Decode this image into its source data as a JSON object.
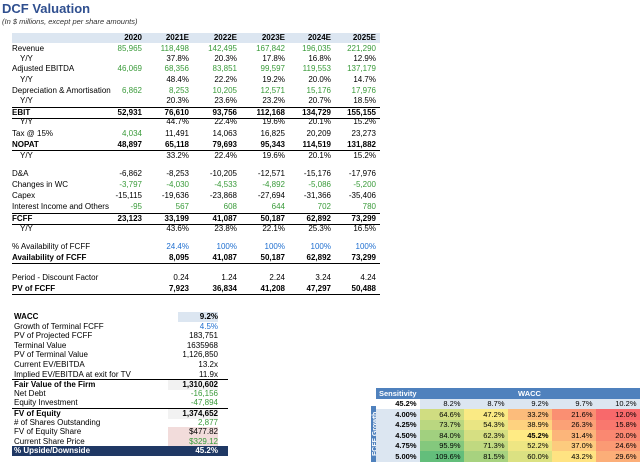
{
  "header": {
    "title": "DCF Valuation",
    "subtitle": "(In $ millions, except per share amounts)"
  },
  "years": [
    "2020",
    "2021E",
    "2022E",
    "2023E",
    "2024E",
    "2025E"
  ],
  "fin_rows": [
    {
      "label": "Revenue",
      "values": [
        "85,965",
        "118,498",
        "142,495",
        "167,842",
        "196,035",
        "221,290"
      ]
    },
    {
      "label": "Y/Y",
      "values": [
        "",
        "37.8%",
        "20.3%",
        "17.8%",
        "16.8%",
        "12.9%"
      ]
    },
    {
      "label": "Adjusted EBITDA",
      "values": [
        "46,069",
        "68,356",
        "83,851",
        "99,597",
        "119,553",
        "137,179"
      ]
    },
    {
      "label": "Y/Y",
      "values": [
        "",
        "48.4%",
        "22.2%",
        "19.2%",
        "20.0%",
        "14.7%"
      ]
    },
    {
      "label": "Depreciation & Amortisation",
      "values": [
        "6,862",
        "8,253",
        "10,205",
        "12,571",
        "15,176",
        "17,976"
      ]
    },
    {
      "label": "Y/Y",
      "values": [
        "",
        "20.3%",
        "23.6%",
        "23.2%",
        "20.7%",
        "18.5%"
      ]
    },
    {
      "label": "EBIT",
      "values": [
        "52,931",
        "76,610",
        "93,756",
        "112,168",
        "134,729",
        "155,155"
      ]
    },
    {
      "label": "Y/Y",
      "values": [
        "",
        "44.7%",
        "22.4%",
        "19.6%",
        "20.1%",
        "15.2%"
      ]
    },
    {
      "label": "Tax @ 15%",
      "values": [
        "4,034",
        "11,491",
        "14,063",
        "16,825",
        "20,209",
        "23,273"
      ]
    },
    {
      "label": "NOPAT",
      "values": [
        "48,897",
        "65,118",
        "79,693",
        "95,343",
        "114,519",
        "131,882"
      ]
    },
    {
      "label": "Y/Y",
      "values": [
        "",
        "33.2%",
        "22.4%",
        "19.6%",
        "20.1%",
        "15.2%"
      ]
    },
    {
      "label": "D&A",
      "values": [
        "-6,862",
        "-8,253",
        "-10,205",
        "-12,571",
        "-15,176",
        "-17,976"
      ]
    },
    {
      "label": "Changes in WC",
      "values": [
        "-3,797",
        "-4,030",
        "-4,533",
        "-4,892",
        "-5,086",
        "-5,200"
      ]
    },
    {
      "label": "Capex",
      "values": [
        "-15,115",
        "-19,636",
        "-23,868",
        "-27,694",
        "-31,366",
        "-35,406"
      ]
    },
    {
      "label": "Interest Income and Others",
      "values": [
        "-95",
        "567",
        "608",
        "644",
        "702",
        "780"
      ]
    },
    {
      "label": "FCFF",
      "values": [
        "23,123",
        "33,199",
        "41,087",
        "50,187",
        "62,892",
        "73,299"
      ]
    },
    {
      "label": "Y/Y",
      "values": [
        "",
        "43.6%",
        "23.8%",
        "22.1%",
        "25.3%",
        "16.5%"
      ]
    },
    {
      "label": "% Availability of FCFF",
      "values": [
        "",
        "24.4%",
        "100%",
        "100%",
        "100%",
        "100%"
      ]
    },
    {
      "label": "Availability of FCFF",
      "values": [
        "",
        "8,095",
        "41,087",
        "50,187",
        "62,892",
        "73,299"
      ]
    },
    {
      "label": "Period - Discount Factor",
      "values": [
        "",
        "0.24",
        "1.24",
        "2.24",
        "3.24",
        "4.24"
      ]
    },
    {
      "label": "PV of FCFF",
      "values": [
        "",
        "7,923",
        "36,834",
        "41,208",
        "47,297",
        "50,488"
      ]
    }
  ],
  "wacc_rows": [
    {
      "label": "WACC",
      "value": "9.2%"
    },
    {
      "label": "Growth of Terminal FCFF",
      "value": "4.5%"
    },
    {
      "label": "PV of Projected FCFF",
      "value": "183,751"
    },
    {
      "label": "Terminal Value",
      "value": "1635968"
    },
    {
      "label": "PV of Terminal Value",
      "value": "1,126,850"
    },
    {
      "label": "Current EV/EBITDA",
      "value": "13.2x"
    },
    {
      "label": "Implied EV/EBITDA at exit for TV",
      "value": "11.9x"
    },
    {
      "label": "Fair Value of the Firm",
      "value": "1,310,602"
    },
    {
      "label": "Net Debt",
      "value": "-16,156"
    },
    {
      "label": "Equity Investment",
      "value": "-47,894"
    },
    {
      "label": "FV of Equity",
      "value": "1,374,652"
    },
    {
      "label": "# of Shares Outstanding",
      "value": "2,877"
    },
    {
      "label": "FV of Equity Share",
      "value": "$477.82"
    },
    {
      "label": "Current Share Price",
      "value": "$329.12"
    },
    {
      "label": "% Upside/Downside",
      "value": "45.2%"
    }
  ],
  "sensitivity": {
    "title": "Sensitivity",
    "wacc_header": "WACC",
    "growth_label": "FCFF Growth",
    "corner": "45.2%",
    "wacc_values": [
      "8.2%",
      "8.7%",
      "9.2%",
      "9.7%",
      "10.2%"
    ],
    "rows": [
      {
        "growth": "4.00%",
        "cells": [
          "64.6%",
          "47.2%",
          "33.2%",
          "21.6%",
          "12.0%"
        ]
      },
      {
        "growth": "4.25%",
        "cells": [
          "73.7%",
          "54.3%",
          "38.9%",
          "26.3%",
          "15.8%"
        ]
      },
      {
        "growth": "4.50%",
        "cells": [
          "84.0%",
          "62.3%",
          "45.2%",
          "31.4%",
          "20.0%"
        ]
      },
      {
        "growth": "4.75%",
        "cells": [
          "95.9%",
          "71.3%",
          "52.2%",
          "37.0%",
          "24.6%"
        ]
      },
      {
        "growth": "5.00%",
        "cells": [
          "109.6%",
          "81.5%",
          "60.0%",
          "43.2%",
          "29.6%"
        ]
      }
    ],
    "colors": {
      "high": "#63be7b",
      "mid": "#ffeb84",
      "low": "#f8696b"
    }
  }
}
